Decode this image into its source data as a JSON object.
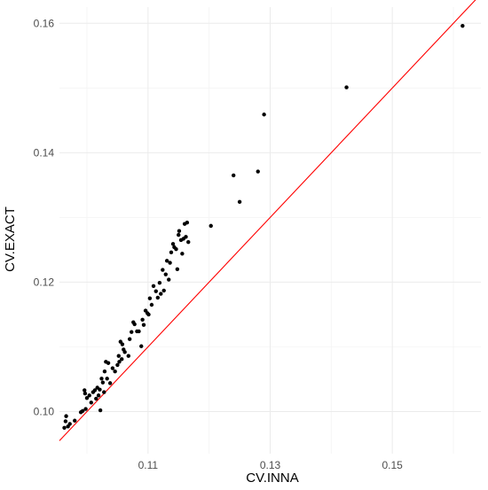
{
  "chart_data": {
    "type": "scatter",
    "title": "",
    "xlabel": "CV.INNA",
    "ylabel": "CV.EXACT",
    "xlim": [
      0.0955,
      0.1645
    ],
    "ylim": [
      0.0935,
      0.1625
    ],
    "x_ticks": [
      0.11,
      0.13,
      0.15
    ],
    "x_tick_labels": [
      "0.11",
      "0.13",
      "0.15"
    ],
    "y_ticks": [
      0.1,
      0.12,
      0.14,
      0.16
    ],
    "y_tick_labels": [
      "0.10",
      "0.12",
      "0.14",
      "0.16"
    ],
    "x_minor_gridlines": [
      0.1,
      0.12,
      0.14,
      0.16
    ],
    "y_minor_gridlines": [
      0.11,
      0.13,
      0.15
    ],
    "grid": true,
    "legend": "none",
    "colors": {
      "points": "#000000",
      "reference_line": "#ff0000",
      "grid_major": "#ebebeb",
      "grid_minor": "#f4f4f4",
      "tick_text": "#4d4d4d",
      "axis_title": "#000000"
    },
    "reference_line": {
      "description": "y = x",
      "x": [
        0.0955,
        0.1645
      ],
      "y": [
        0.0955,
        0.1645
      ]
    },
    "series": [
      {
        "points": [
          [
            0.0963,
            0.0975
          ],
          [
            0.0965,
            0.0985
          ],
          [
            0.0966,
            0.0993
          ],
          [
            0.0969,
            0.0977
          ],
          [
            0.0972,
            0.0981
          ],
          [
            0.098,
            0.0986
          ],
          [
            0.099,
            0.0999
          ],
          [
            0.0993,
            0.1001
          ],
          [
            0.0996,
            0.1033
          ],
          [
            0.0997,
            0.1028
          ],
          [
            0.0998,
            0.1004
          ],
          [
            0.1,
            0.1021
          ],
          [
            0.1004,
            0.1025
          ],
          [
            0.1007,
            0.1014
          ],
          [
            0.101,
            0.103
          ],
          [
            0.1013,
            0.1033
          ],
          [
            0.1015,
            0.102
          ],
          [
            0.1017,
            0.1037
          ],
          [
            0.1019,
            0.1025
          ],
          [
            0.1021,
            0.1034
          ],
          [
            0.1022,
            0.1002
          ],
          [
            0.1024,
            0.1051
          ],
          [
            0.1026,
            0.1045
          ],
          [
            0.1028,
            0.103
          ],
          [
            0.1029,
            0.1062
          ],
          [
            0.1031,
            0.1077
          ],
          [
            0.1033,
            0.1051
          ],
          [
            0.1035,
            0.1075
          ],
          [
            0.1038,
            0.1044
          ],
          [
            0.1042,
            0.1067
          ],
          [
            0.1046,
            0.1062
          ],
          [
            0.105,
            0.1072
          ],
          [
            0.1052,
            0.1086
          ],
          [
            0.1053,
            0.1077
          ],
          [
            0.1055,
            0.1108
          ],
          [
            0.1057,
            0.1081
          ],
          [
            0.1058,
            0.1104
          ],
          [
            0.106,
            0.1096
          ],
          [
            0.1062,
            0.1092
          ],
          [
            0.1068,
            0.1086
          ],
          [
            0.107,
            0.1112
          ],
          [
            0.1073,
            0.1123
          ],
          [
            0.1076,
            0.1138
          ],
          [
            0.1078,
            0.1135
          ],
          [
            0.1082,
            0.1124
          ],
          [
            0.1085,
            0.1124
          ],
          [
            0.1089,
            0.1101
          ],
          [
            0.1091,
            0.1142
          ],
          [
            0.1093,
            0.1134
          ],
          [
            0.1096,
            0.1156
          ],
          [
            0.1099,
            0.1152
          ],
          [
            0.1101,
            0.115
          ],
          [
            0.1103,
            0.1175
          ],
          [
            0.1106,
            0.1165
          ],
          [
            0.1109,
            0.1194
          ],
          [
            0.1113,
            0.1186
          ],
          [
            0.1116,
            0.1176
          ],
          [
            0.1119,
            0.1199
          ],
          [
            0.1121,
            0.1182
          ],
          [
            0.1124,
            0.1219
          ],
          [
            0.1126,
            0.1187
          ],
          [
            0.1129,
            0.1212
          ],
          [
            0.1131,
            0.1233
          ],
          [
            0.1134,
            0.1204
          ],
          [
            0.1136,
            0.123
          ],
          [
            0.1138,
            0.1246
          ],
          [
            0.1141,
            0.1259
          ],
          [
            0.1143,
            0.1254
          ],
          [
            0.1146,
            0.1251
          ],
          [
            0.1148,
            0.122
          ],
          [
            0.115,
            0.1273
          ],
          [
            0.1151,
            0.1279
          ],
          [
            0.1154,
            0.1265
          ],
          [
            0.1156,
            0.1244
          ],
          [
            0.1158,
            0.1267
          ],
          [
            0.116,
            0.129
          ],
          [
            0.1162,
            0.127
          ],
          [
            0.1164,
            0.1292
          ],
          [
            0.1166,
            0.1262
          ],
          [
            0.1203,
            0.1287
          ],
          [
            0.124,
            0.1365
          ],
          [
            0.125,
            0.1324
          ],
          [
            0.128,
            0.1371
          ],
          [
            0.129,
            0.1459
          ],
          [
            0.1425,
            0.1501
          ],
          [
            0.1615,
            0.1596
          ]
        ]
      }
    ]
  }
}
